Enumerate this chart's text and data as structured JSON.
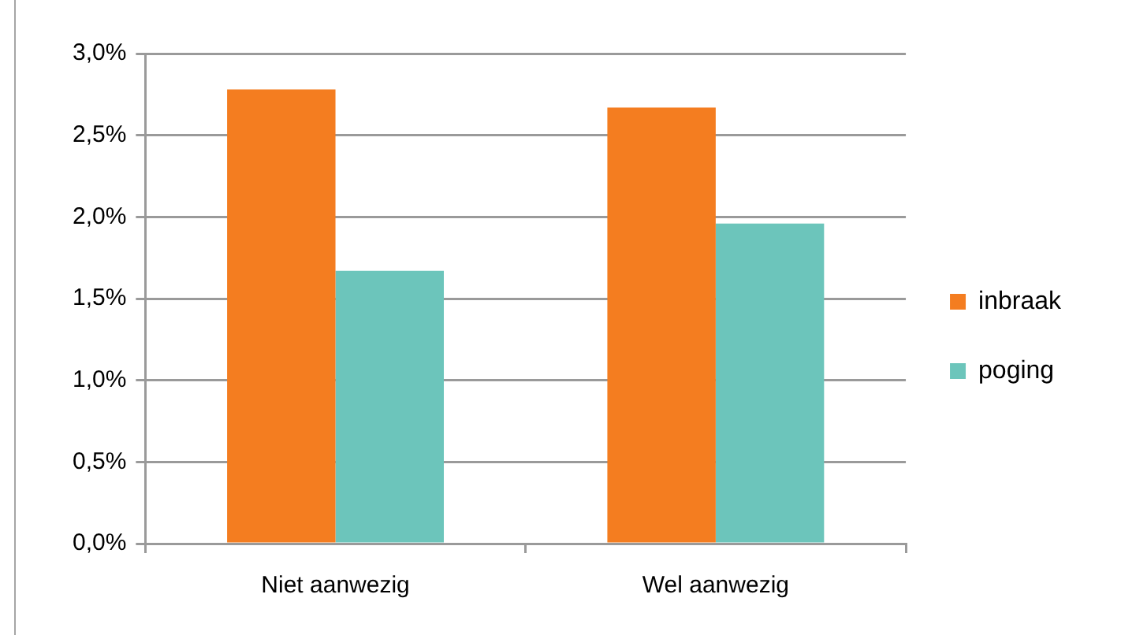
{
  "chart_data": {
    "type": "bar",
    "categories": [
      "Niet aanwezig",
      "Wel aanwezig"
    ],
    "series": [
      {
        "name": "inbraak",
        "color": "#f47d20",
        "values": [
          2.78,
          2.67
        ]
      },
      {
        "name": "poging",
        "color": "#6cc5bb",
        "values": [
          1.67,
          1.96
        ]
      }
    ],
    "ylim": [
      0,
      3
    ],
    "yticks": [
      {
        "value": 0,
        "label": "0,0%"
      },
      {
        "value": 0.5,
        "label": "0,5%"
      },
      {
        "value": 1,
        "label": "1,0%"
      },
      {
        "value": 1.5,
        "label": "1,5%"
      },
      {
        "value": 2,
        "label": "2,0%"
      },
      {
        "value": 2.5,
        "label": "2,5%"
      },
      {
        "value": 3,
        "label": "3,0%"
      }
    ],
    "grid": "y",
    "legend": "right"
  }
}
